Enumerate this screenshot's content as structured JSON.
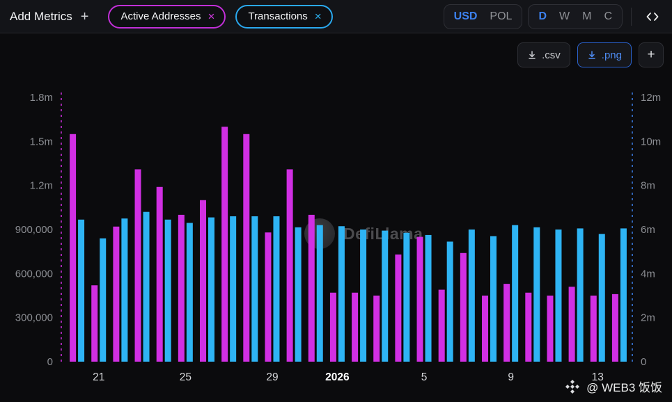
{
  "toolbar": {
    "add_metrics": {
      "label": "Add Metrics",
      "plus": "+"
    },
    "metric_chips": [
      {
        "label": "Active Addresses",
        "close": "×",
        "color": "#d12fe3"
      },
      {
        "label": "Transactions",
        "close": "×",
        "color": "#2eb4f4"
      }
    ],
    "currency_toggle": {
      "options": [
        "USD",
        "POL"
      ],
      "selected": "USD"
    },
    "interval_toggle": {
      "options": [
        "D",
        "W",
        "M",
        "C"
      ],
      "selected": "D"
    },
    "icons": {
      "embed": "code-brackets-icon",
      "download": "download-arrow-icon"
    }
  },
  "export_bar": {
    "csv": ".csv",
    "png": ".png",
    "plus": "+"
  },
  "watermark": {
    "text": "DefiLlama"
  },
  "credit": {
    "text": "@ WEB3 饭饭"
  },
  "colors": {
    "accent_blue": "#3d82f0",
    "magenta": "#d12fe3",
    "cyan": "#2eb4f4"
  },
  "chart_data": {
    "type": "bar",
    "title": "",
    "series": [
      {
        "name": "Active Addresses",
        "axis": "left",
        "color": "#d12fe3",
        "values": [
          1550000,
          520000,
          920000,
          1310000,
          1190000,
          1000000,
          1100000,
          1600000,
          1550000,
          880000,
          1310000,
          1000000,
          470000,
          470000,
          450000,
          730000,
          850000,
          490000,
          740000,
          450000,
          530000,
          470000,
          450000,
          510000,
          450000,
          460000
        ]
      },
      {
        "name": "Transactions",
        "axis": "right",
        "color": "#2eb4f4",
        "values": [
          6450000,
          5600000,
          6500000,
          6800000,
          6450000,
          6300000,
          6550000,
          6600000,
          6600000,
          6600000,
          6100000,
          6200000,
          6150000,
          6000000,
          5950000,
          5850000,
          5750000,
          5450000,
          6000000,
          5700000,
          6200000,
          6100000,
          6000000,
          6050000,
          5800000,
          6050000
        ]
      }
    ],
    "left_axis": {
      "ticks": [
        "1.8m",
        "1.5m",
        "1.2m",
        "900,000",
        "600,000",
        "300,000",
        "0"
      ],
      "max": 1800000
    },
    "right_axis": {
      "ticks": [
        "12m",
        "10m",
        "8m",
        "6m",
        "4m",
        "2m",
        "0"
      ],
      "max": 12000000
    },
    "x_ticks": [
      {
        "i": 1,
        "label": "21"
      },
      {
        "i": 5,
        "label": "25"
      },
      {
        "i": 9,
        "label": "29"
      },
      {
        "i": 12,
        "label": "2026",
        "bold": true
      },
      {
        "i": 16,
        "label": "5"
      },
      {
        "i": 20,
        "label": "9"
      },
      {
        "i": 24,
        "label": "13"
      }
    ],
    "grid": false,
    "legend_position": "none"
  }
}
